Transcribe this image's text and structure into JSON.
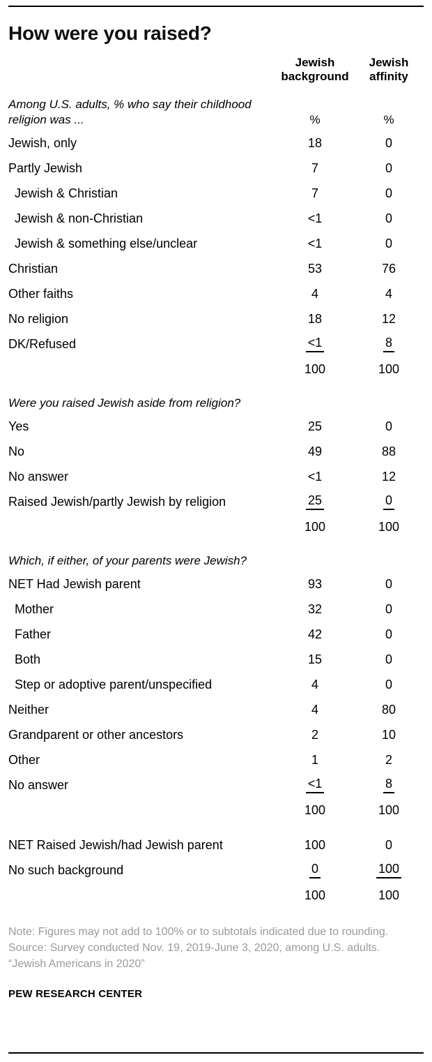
{
  "colors": {
    "text": "#000000",
    "note_text": "#9a9a9a",
    "rule": "#000000",
    "background": "#ffffff"
  },
  "chart_data": {
    "type": "table",
    "title": "How were you raised?",
    "columns": [
      "Jewish background",
      "Jewish affinity"
    ],
    "sections": [
      {
        "header": "Among U.S. adults, % who say their childhood religion was ...",
        "units": [
          "%",
          "%"
        ],
        "rows": [
          {
            "label": "Jewish, only",
            "indent": 0,
            "values": [
              "18",
              "0"
            ]
          },
          {
            "label": "Partly Jewish",
            "indent": 0,
            "values": [
              "7",
              "0"
            ]
          },
          {
            "label": "Jewish & Christian",
            "indent": 1,
            "values": [
              "7",
              "0"
            ]
          },
          {
            "label": "Jewish & non-Christian",
            "indent": 1,
            "values": [
              "<1",
              "0"
            ]
          },
          {
            "label": "Jewish & something else/unclear",
            "indent": 1,
            "values": [
              "<1",
              "0"
            ]
          },
          {
            "label": "Christian",
            "indent": 0,
            "values": [
              "53",
              "76"
            ]
          },
          {
            "label": "Other faiths",
            "indent": 0,
            "values": [
              "4",
              "4"
            ]
          },
          {
            "label": "No religion",
            "indent": 0,
            "values": [
              "18",
              "12"
            ]
          },
          {
            "label": "DK/Refused",
            "indent": 0,
            "values": [
              "<1",
              "8"
            ],
            "underline": true
          },
          {
            "label": "",
            "indent": 0,
            "values": [
              "100",
              "100"
            ],
            "total": true
          }
        ]
      },
      {
        "header": "Were you raised Jewish aside from religion?",
        "rows": [
          {
            "label": "Yes",
            "indent": 0,
            "values": [
              "25",
              "0"
            ]
          },
          {
            "label": "No",
            "indent": 0,
            "values": [
              "49",
              "88"
            ]
          },
          {
            "label": "No answer",
            "indent": 0,
            "values": [
              "<1",
              "12"
            ]
          },
          {
            "label": "Raised Jewish/partly Jewish by religion",
            "indent": 0,
            "values": [
              "25",
              "0"
            ],
            "underline": true
          },
          {
            "label": "",
            "indent": 0,
            "values": [
              "100",
              "100"
            ],
            "total": true
          }
        ]
      },
      {
        "header": "Which, if either, of your parents were Jewish?",
        "rows": [
          {
            "label": "NET Had Jewish parent",
            "indent": 0,
            "values": [
              "93",
              "0"
            ]
          },
          {
            "label": "Mother",
            "indent": 1,
            "values": [
              "32",
              "0"
            ]
          },
          {
            "label": "Father",
            "indent": 1,
            "values": [
              "42",
              "0"
            ]
          },
          {
            "label": "Both",
            "indent": 1,
            "values": [
              "15",
              "0"
            ]
          },
          {
            "label": "Step or adoptive parent/unspecified",
            "indent": 1,
            "values": [
              "4",
              "0"
            ]
          },
          {
            "label": "Neither",
            "indent": 0,
            "values": [
              "4",
              "80"
            ]
          },
          {
            "label": "Grandparent or other ancestors",
            "indent": 0,
            "values": [
              "2",
              "10"
            ]
          },
          {
            "label": "Other",
            "indent": 0,
            "values": [
              "1",
              "2"
            ]
          },
          {
            "label": "No answer",
            "indent": 0,
            "values": [
              "<1",
              "8"
            ],
            "underline": true
          },
          {
            "label": "",
            "indent": 0,
            "values": [
              "100",
              "100"
            ],
            "total": true
          }
        ]
      },
      {
        "header": "",
        "rows": [
          {
            "label": "NET Raised Jewish/had Jewish parent",
            "indent": 0,
            "values": [
              "100",
              "0"
            ]
          },
          {
            "label": "No such background",
            "indent": 0,
            "values": [
              "0",
              "100"
            ],
            "underline": true
          },
          {
            "label": "",
            "indent": 0,
            "values": [
              "100",
              "100"
            ],
            "total": true
          }
        ]
      }
    ],
    "notes": [
      "Note: Figures may not add to 100% or to subtotals indicated due to rounding.",
      "Source: Survey conducted Nov. 19, 2019-June 3, 2020, among U.S. adults.",
      "“Jewish Americans in 2020”"
    ],
    "footer": "PEW RESEARCH CENTER"
  }
}
